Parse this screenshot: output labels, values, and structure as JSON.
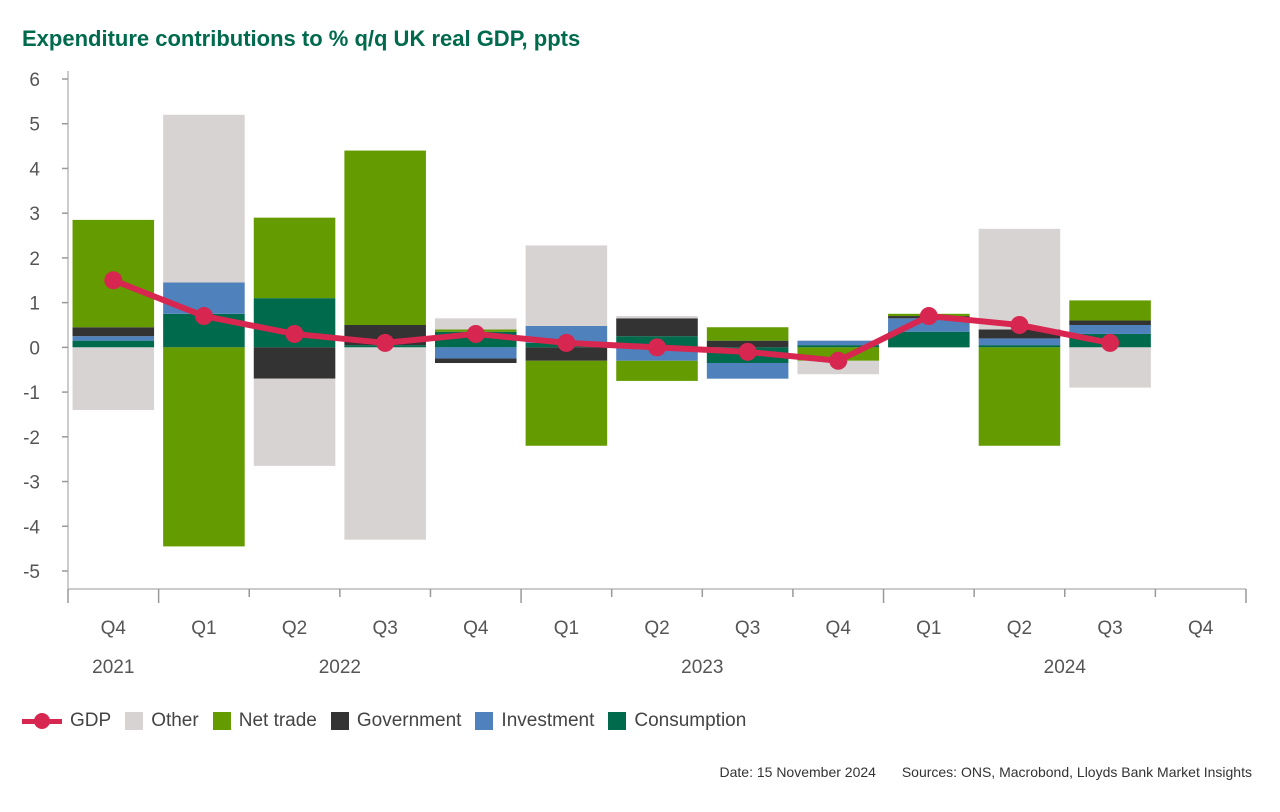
{
  "chart_data": {
    "type": "bar",
    "stacked": true,
    "title": "Expenditure contributions to % q/q UK real GDP, ppts",
    "categories": [
      "Q4",
      "Q1",
      "Q2",
      "Q3",
      "Q4",
      "Q1",
      "Q2",
      "Q3",
      "Q4",
      "Q1",
      "Q2",
      "Q3",
      "Q4"
    ],
    "years": [
      {
        "label": "2021",
        "from": 0,
        "to": 0
      },
      {
        "label": "2022",
        "from": 1,
        "to": 4
      },
      {
        "label": "2023",
        "from": 5,
        "to": 8
      },
      {
        "label": "2024",
        "from": 9,
        "to": 12
      }
    ],
    "ylim": [
      -5,
      6
    ],
    "yticks": [
      -5,
      -4,
      -3,
      -2,
      -1,
      0,
      1,
      2,
      3,
      4,
      5,
      6
    ],
    "grid": false,
    "legend_position": "bottom",
    "series": [
      {
        "name": "Consumption",
        "color": "#006a4d",
        "values": [
          0.15,
          0.75,
          1.1,
          0.05,
          0.35,
          0.1,
          0.25,
          -0.35,
          0.05,
          0.35,
          0.05,
          0.3,
          null
        ]
      },
      {
        "name": "Investment",
        "color": "#4f81bd",
        "values": [
          0.1,
          0.7,
          0.0,
          0.0,
          -0.25,
          0.38,
          -0.3,
          -0.35,
          0.1,
          0.3,
          0.15,
          0.2,
          null
        ]
      },
      {
        "name": "Government",
        "color": "#333333",
        "values": [
          0.2,
          0.0,
          -0.7,
          0.45,
          -0.1,
          -0.3,
          0.4,
          0.15,
          0.0,
          0.05,
          0.2,
          0.1,
          null
        ]
      },
      {
        "name": "Net trade",
        "color": "#649c00",
        "values": [
          2.4,
          -4.45,
          1.8,
          3.9,
          0.05,
          -1.9,
          -0.45,
          0.3,
          -0.3,
          0.05,
          -2.2,
          0.45,
          null
        ]
      },
      {
        "name": "Other",
        "color": "#d8d3d3",
        "values": [
          -1.4,
          3.75,
          -1.95,
          -4.3,
          0.25,
          1.8,
          0.05,
          0.0,
          -0.3,
          0.0,
          2.25,
          -0.9,
          null
        ]
      }
    ],
    "line": {
      "name": "GDP",
      "color": "#d7264f",
      "values": [
        1.5,
        0.7,
        0.3,
        0.1,
        0.3,
        0.1,
        0.0,
        -0.1,
        -0.3,
        0.7,
        0.5,
        0.1,
        null
      ]
    }
  },
  "legend_order": [
    "GDP",
    "Other",
    "Net trade",
    "Government",
    "Investment",
    "Consumption"
  ],
  "footer": {
    "date": "Date: 15 November 2024",
    "sources": "Sources: ONS, Macrobond, Lloyds Bank Market Insights"
  }
}
